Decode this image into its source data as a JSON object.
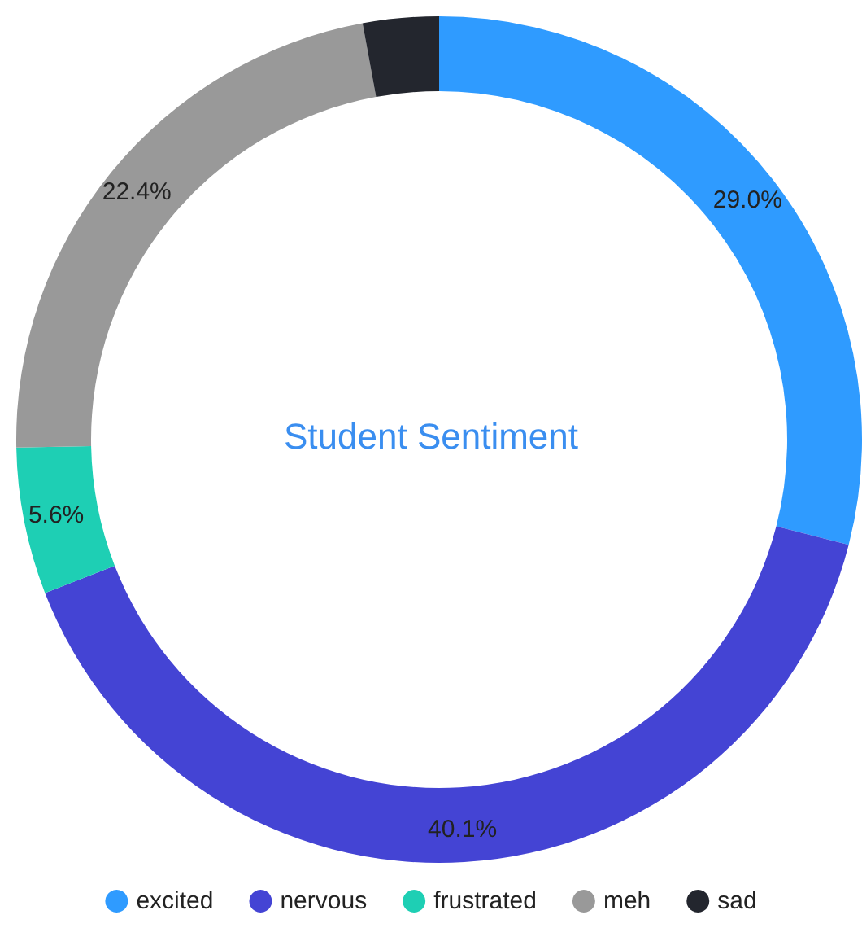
{
  "chart_data": {
    "type": "donut",
    "title": "Student Sentiment",
    "categories": [
      "excited",
      "nervous",
      "frustrated",
      "meh",
      "sad"
    ],
    "values": [
      29.0,
      40.1,
      5.6,
      22.4,
      2.9
    ],
    "value_labels": [
      "29.0%",
      "40.1%",
      "5.6%",
      "22.4%",
      null
    ],
    "colors": [
      "#2f9bff",
      "#4444d4",
      "#1ecfb4",
      "#999999",
      "#23262e"
    ],
    "legend": "bottom"
  }
}
